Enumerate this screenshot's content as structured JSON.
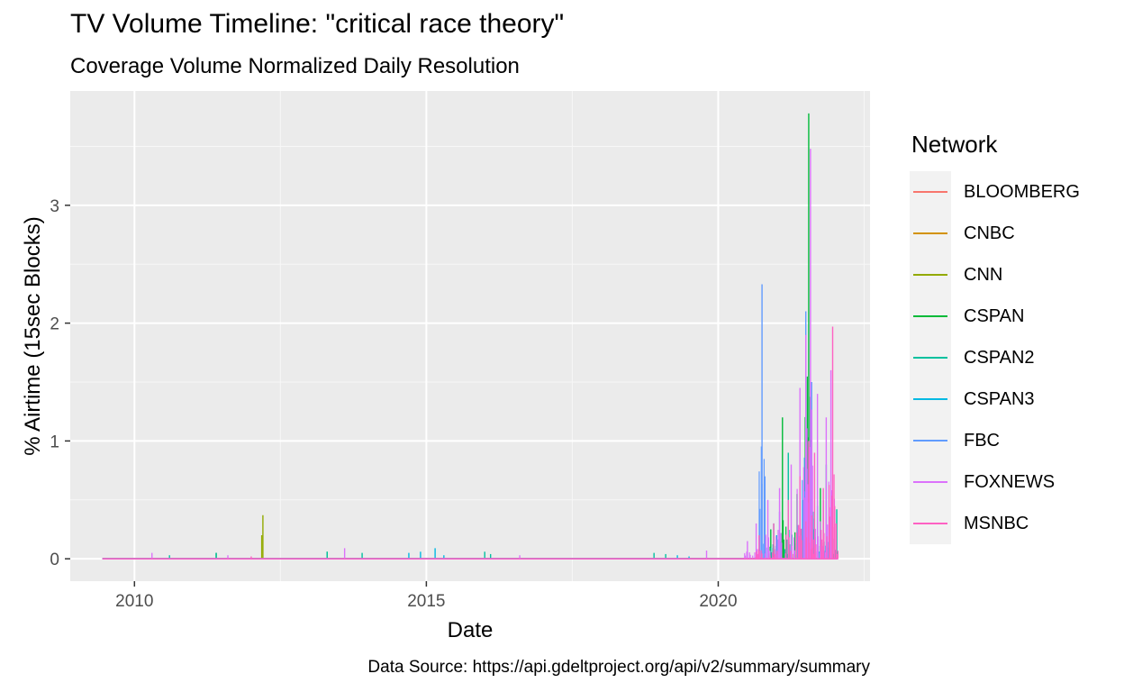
{
  "title": "TV Volume Timeline: \"critical race theory\"",
  "subtitle": "Coverage Volume Normalized Daily Resolution",
  "caption": "Data Source: https://api.gdeltproject.org/api/v2/summary/summary",
  "legend": {
    "title": "Network",
    "items": [
      {
        "label": "BLOOMBERG",
        "color": "#F8766D"
      },
      {
        "label": "CNBC",
        "color": "#D39200"
      },
      {
        "label": "CNN",
        "color": "#93AA00"
      },
      {
        "label": "CSPAN",
        "color": "#00BA38"
      },
      {
        "label": "CSPAN2",
        "color": "#00C19F"
      },
      {
        "label": "CSPAN3",
        "color": "#00B9E3"
      },
      {
        "label": "FBC",
        "color": "#619CFF"
      },
      {
        "label": "FOXNEWS",
        "color": "#DB72FB"
      },
      {
        "label": "MSNBC",
        "color": "#FF61C3"
      }
    ]
  },
  "chart_data": {
    "type": "line",
    "title": "TV Volume Timeline: \"critical race theory\"",
    "subtitle": "Coverage Volume Normalized Daily Resolution",
    "xlabel": "Date",
    "ylabel": "% Airtime (15sec Blocks)",
    "x_ticks": [
      2010,
      2015,
      2020
    ],
    "y_ticks": [
      0,
      1,
      2,
      3
    ],
    "xlim": [
      2008.9,
      2022.6
    ],
    "ylim": [
      -0.19,
      3.97
    ],
    "grid": true,
    "legend_position": "right",
    "baseline_range": [
      2009.45,
      2022.05
    ],
    "series": [
      {
        "name": "BLOOMBERG",
        "color": "#F8766D",
        "points": [
          [
            2021.3,
            0.1
          ],
          [
            2021.6,
            0.15
          ]
        ]
      },
      {
        "name": "CNBC",
        "color": "#D39200",
        "points": [
          [
            2021.5,
            0.05
          ]
        ]
      },
      {
        "name": "CNN",
        "color": "#93AA00",
        "points": [
          [
            2012.2,
            0.37
          ],
          [
            2012.18,
            0.2
          ],
          [
            2021.0,
            0.1
          ],
          [
            2021.5,
            0.2
          ]
        ]
      },
      {
        "name": "CSPAN",
        "color": "#00BA38",
        "points": [
          [
            2011.4,
            0.05
          ],
          [
            2013.3,
            0.06
          ],
          [
            2020.9,
            0.25
          ],
          [
            2021.1,
            1.2
          ],
          [
            2021.35,
            0.55
          ],
          [
            2021.55,
            3.78
          ],
          [
            2021.75,
            0.6
          ],
          [
            2021.95,
            0.3
          ]
        ]
      },
      {
        "name": "CSPAN2",
        "color": "#00C19F",
        "points": [
          [
            2010.6,
            0.03
          ],
          [
            2011.4,
            0.05
          ],
          [
            2013.3,
            0.06
          ],
          [
            2013.9,
            0.05
          ],
          [
            2016.0,
            0.06
          ],
          [
            2016.1,
            0.04
          ],
          [
            2018.9,
            0.05
          ],
          [
            2019.1,
            0.04
          ],
          [
            2020.95,
            0.3
          ],
          [
            2021.2,
            0.9
          ],
          [
            2021.4,
            0.7
          ],
          [
            2021.6,
            1.1
          ],
          [
            2021.85,
            0.8
          ],
          [
            2022.03,
            0.42
          ]
        ]
      },
      {
        "name": "CSPAN3",
        "color": "#00B9E3",
        "points": [
          [
            2014.7,
            0.05
          ],
          [
            2014.9,
            0.06
          ],
          [
            2015.15,
            0.09
          ],
          [
            2015.3,
            0.03
          ],
          [
            2019.3,
            0.03
          ],
          [
            2019.5,
            0.02
          ],
          [
            2021.0,
            0.2
          ],
          [
            2021.45,
            0.5
          ],
          [
            2021.7,
            0.45
          ],
          [
            2021.9,
            0.35
          ]
        ]
      },
      {
        "name": "FBC",
        "color": "#619CFF",
        "points": [
          [
            2020.75,
            2.33
          ],
          [
            2020.8,
            0.7
          ],
          [
            2021.05,
            0.4
          ],
          [
            2021.5,
            2.1
          ],
          [
            2021.6,
            1.5
          ],
          [
            2021.8,
            0.5
          ]
        ]
      },
      {
        "name": "FOXNEWS",
        "color": "#DB72FB",
        "points": [
          [
            2010.3,
            0.05
          ],
          [
            2011.6,
            0.03
          ],
          [
            2013.6,
            0.09
          ],
          [
            2016.6,
            0.03
          ],
          [
            2019.8,
            0.07
          ],
          [
            2020.5,
            0.15
          ],
          [
            2020.65,
            0.3
          ],
          [
            2020.85,
            0.5
          ],
          [
            2021.05,
            0.6
          ],
          [
            2021.25,
            0.8
          ],
          [
            2021.4,
            1.45
          ],
          [
            2021.5,
            1.9
          ],
          [
            2021.58,
            3.48
          ],
          [
            2021.7,
            1.4
          ],
          [
            2021.85,
            1.2
          ],
          [
            2021.93,
            1.6
          ]
        ]
      },
      {
        "name": "MSNBC",
        "color": "#FF61C3",
        "points": [
          [
            2012.0,
            0.02
          ],
          [
            2020.7,
            0.2
          ],
          [
            2020.95,
            0.3
          ],
          [
            2021.2,
            0.5
          ],
          [
            2021.4,
            0.7
          ],
          [
            2021.55,
            1.0
          ],
          [
            2021.65,
            0.9
          ],
          [
            2021.8,
            0.6
          ],
          [
            2021.96,
            1.97
          ],
          [
            2022.02,
            0.3
          ]
        ]
      }
    ]
  }
}
